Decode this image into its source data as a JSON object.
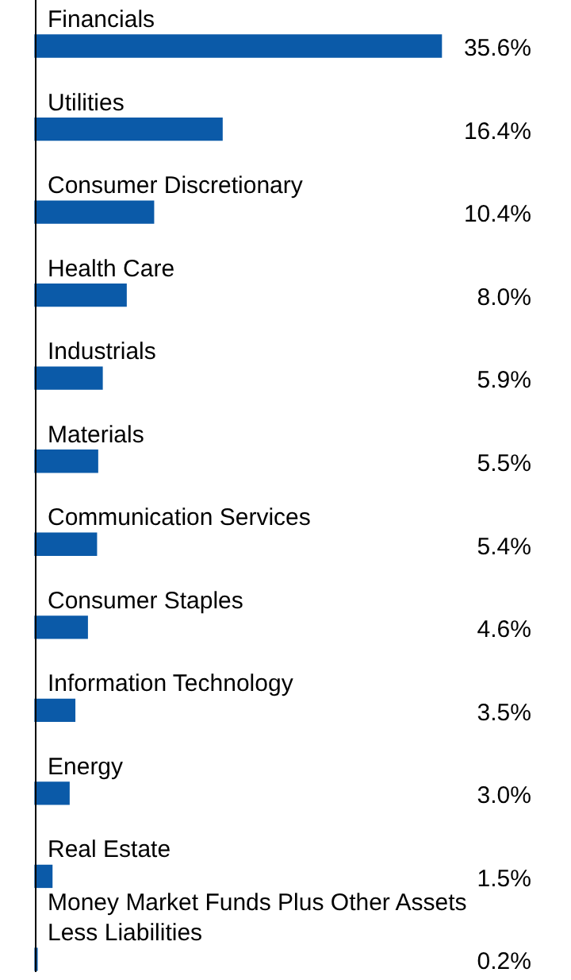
{
  "chart_data": {
    "type": "bar",
    "orientation": "horizontal",
    "categories": [
      "Financials",
      "Utilities",
      "Consumer Discretionary",
      "Health Care",
      "Industrials",
      "Materials",
      "Communication Services",
      "Consumer Staples",
      "Information Technology",
      "Energy",
      "Real Estate",
      "Money Market Funds Plus Other Assets Less Liabilities"
    ],
    "values": [
      35.6,
      16.4,
      10.4,
      8.0,
      5.9,
      5.5,
      5.4,
      4.6,
      3.5,
      3.0,
      1.5,
      0.2
    ],
    "value_labels": [
      "35.6%",
      "16.4%",
      "10.4%",
      "8.0%",
      "5.9%",
      "5.5%",
      "5.4%",
      "4.6%",
      "3.5%",
      "3.0%",
      "1.5%",
      "0.2%"
    ],
    "color": "#0b5aa8"
  }
}
